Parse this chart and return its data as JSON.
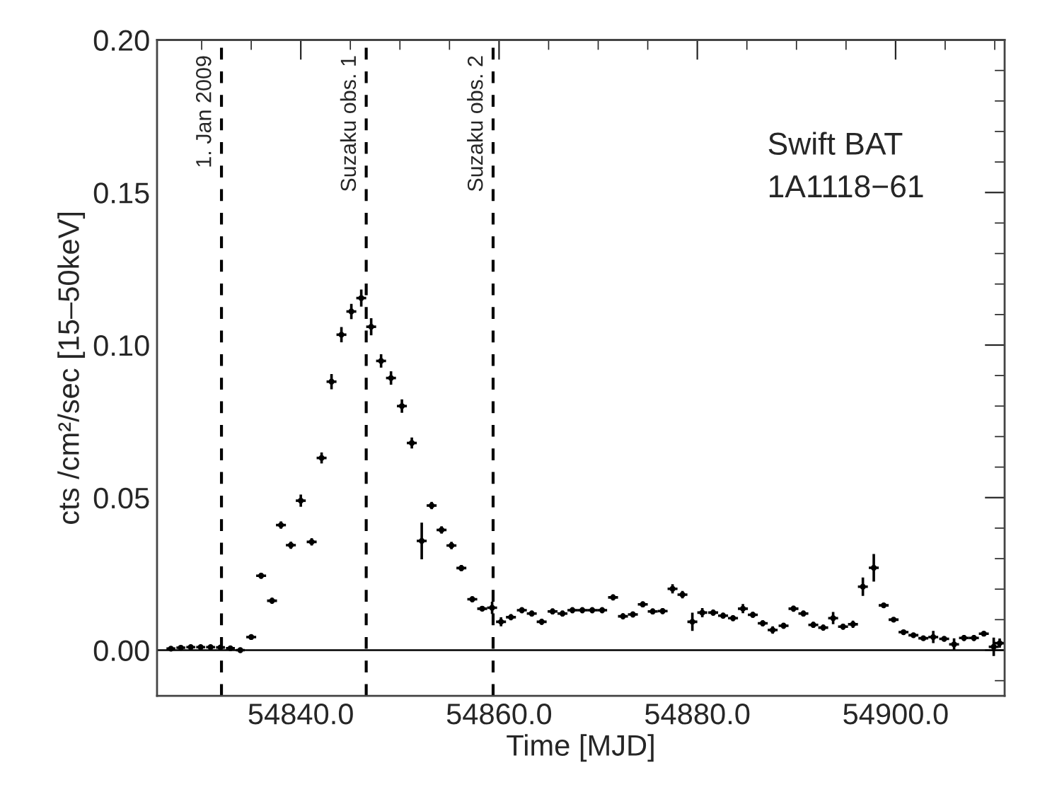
{
  "chart_data": {
    "type": "scatter",
    "xlabel": "Time [MJD]",
    "ylabel": "cts /cm²/sec [15–50keV]",
    "annotations": [
      "Swift BAT",
      "1A1118−61"
    ],
    "xlim": [
      54825.5,
      54911.0
    ],
    "ylim": [
      -0.015,
      0.2
    ],
    "xticks": [
      {
        "value": 54840,
        "label": "54840.0"
      },
      {
        "value": 54860,
        "label": "54860.0"
      },
      {
        "value": 54880,
        "label": "54880.0"
      },
      {
        "value": 54900,
        "label": "54900.0"
      }
    ],
    "yticks": [
      {
        "value": 0,
        "label": "0.00"
      },
      {
        "value": 0.05,
        "label": "0.05"
      },
      {
        "value": 0.1,
        "label": "0.10"
      },
      {
        "value": 0.15,
        "label": "0.15"
      },
      {
        "value": 0.2,
        "label": "0.20"
      }
    ],
    "grid": false,
    "legend": false,
    "marker": "circle",
    "ref_lines": [
      {
        "axis": "y",
        "value": 0,
        "label": null,
        "line_style": "solid",
        "color": "#000000"
      },
      {
        "axis": "x",
        "value": 54832.0,
        "label": "1. Jan 2009",
        "line_style": "dashed",
        "color": "#000000"
      },
      {
        "axis": "x",
        "value": 54846.6,
        "label": "Suzaku obs. 1",
        "line_style": "dashed",
        "color": "#000000"
      },
      {
        "axis": "x",
        "value": 54859.4,
        "label": "Suzaku obs. 2",
        "line_style": "dashed",
        "color": "#000000"
      }
    ],
    "series": [
      {
        "color": "#000000",
        "x": [
          54826.9,
          54827.9,
          54828.9,
          54829.9,
          54830.9,
          54831.9,
          54832.9,
          54833.9,
          54835.0,
          54836.0,
          54837.1,
          54838.0,
          54839.0,
          54840.0,
          54841.1,
          54842.1,
          54843.1,
          54844.1,
          54845.1,
          54846.1,
          54847.1,
          54848.1,
          54849.1,
          54850.2,
          54851.2,
          54852.2,
          54853.2,
          54854.2,
          54855.2,
          54856.2,
          54857.3,
          54858.3,
          54859.3,
          54860.2,
          54861.2,
          54862.3,
          54863.3,
          54864.3,
          54865.4,
          54866.4,
          54867.4,
          54868.4,
          54869.4,
          54870.4,
          54871.5,
          54872.5,
          54873.5,
          54874.5,
          54875.5,
          54876.5,
          54877.5,
          54878.5,
          54879.5,
          54880.5,
          54881.6,
          54882.6,
          54883.6,
          54884.6,
          54885.6,
          54886.6,
          54887.6,
          54888.7,
          54889.7,
          54890.7,
          54891.7,
          54892.7,
          54893.7,
          54894.7,
          54895.7,
          54896.7,
          54897.8,
          54898.8,
          54899.8,
          54900.8,
          54901.8,
          54902.8,
          54903.8,
          54904.9,
          54905.9,
          54906.9,
          54907.9,
          54908.9,
          54909.9,
          54910.5
        ],
        "values": [
          0.0005,
          0.0008,
          0.001,
          0.001,
          0.001,
          0.0009,
          0.0006,
          0.0,
          0.0043,
          0.0244,
          0.0162,
          0.041,
          0.0344,
          0.049,
          0.0355,
          0.063,
          0.088,
          0.1034,
          0.111,
          0.1154,
          0.106,
          0.0948,
          0.0892,
          0.08,
          0.0679,
          0.0358,
          0.0474,
          0.0394,
          0.0343,
          0.0269,
          0.0167,
          0.0136,
          0.0139,
          0.0093,
          0.0108,
          0.0131,
          0.012,
          0.0093,
          0.0127,
          0.012,
          0.0131,
          0.0131,
          0.0131,
          0.0131,
          0.0173,
          0.0111,
          0.0117,
          0.015,
          0.0127,
          0.0128,
          0.0201,
          0.0182,
          0.0093,
          0.0123,
          0.0123,
          0.0113,
          0.0105,
          0.0136,
          0.0116,
          0.0088,
          0.0066,
          0.008,
          0.0136,
          0.012,
          0.0083,
          0.0074,
          0.0105,
          0.0077,
          0.0085,
          0.0208,
          0.027,
          0.0147,
          0.01,
          0.0059,
          0.0049,
          0.0039,
          0.0043,
          0.0037,
          0.0019,
          0.004,
          0.004,
          0.0054,
          0.0011,
          0.0023
        ],
        "errors": [
          0.0003,
          0.0003,
          0.0003,
          0.0003,
          0.0003,
          0.0003,
          0.0003,
          0.0003,
          0.0005,
          0.001,
          0.001,
          0.0012,
          0.0012,
          0.002,
          0.0012,
          0.0018,
          0.0025,
          0.0025,
          0.0025,
          0.0028,
          0.0028,
          0.0022,
          0.0022,
          0.0022,
          0.0018,
          0.006,
          0.0012,
          0.0012,
          0.0012,
          0.001,
          0.001,
          0.0008,
          0.002,
          0.0015,
          0.001,
          0.001,
          0.001,
          0.001,
          0.001,
          0.001,
          0.001,
          0.001,
          0.001,
          0.001,
          0.001,
          0.001,
          0.001,
          0.001,
          0.001,
          0.001,
          0.0015,
          0.0012,
          0.003,
          0.0015,
          0.001,
          0.001,
          0.001,
          0.0015,
          0.001,
          0.001,
          0.0012,
          0.001,
          0.001,
          0.001,
          0.001,
          0.001,
          0.002,
          0.001,
          0.0012,
          0.003,
          0.0045,
          0.0005,
          0.0005,
          0.0005,
          0.0005,
          0.0005,
          0.002,
          0.0005,
          0.002,
          0.001,
          0.001,
          0.0005,
          0.003,
          0.0015
        ],
        "xerrors": [
          0.45,
          0.45,
          0.45,
          0.45,
          0.45,
          0.45,
          0.45,
          0.45,
          0.5,
          0.5,
          0.5,
          0.5,
          0.5,
          0.5,
          0.5,
          0.5,
          0.5,
          0.5,
          0.5,
          0.5,
          0.5,
          0.5,
          0.5,
          0.5,
          0.5,
          0.5,
          0.5,
          0.5,
          0.5,
          0.5,
          0.5,
          0.5,
          0.5,
          0.5,
          0.5,
          0.5,
          0.5,
          0.5,
          0.5,
          0.5,
          0.5,
          0.5,
          0.5,
          0.5,
          0.5,
          0.5,
          0.5,
          0.5,
          0.5,
          0.5,
          0.5,
          0.5,
          0.5,
          0.5,
          0.5,
          0.5,
          0.5,
          0.5,
          0.5,
          0.5,
          0.5,
          0.5,
          0.5,
          0.5,
          0.5,
          0.5,
          0.5,
          0.5,
          0.5,
          0.5,
          0.5,
          0.5,
          0.5,
          0.5,
          0.5,
          0.5,
          0.5,
          0.5,
          0.5,
          0.5,
          0.5,
          0.5,
          0.5,
          0.5
        ]
      }
    ]
  }
}
